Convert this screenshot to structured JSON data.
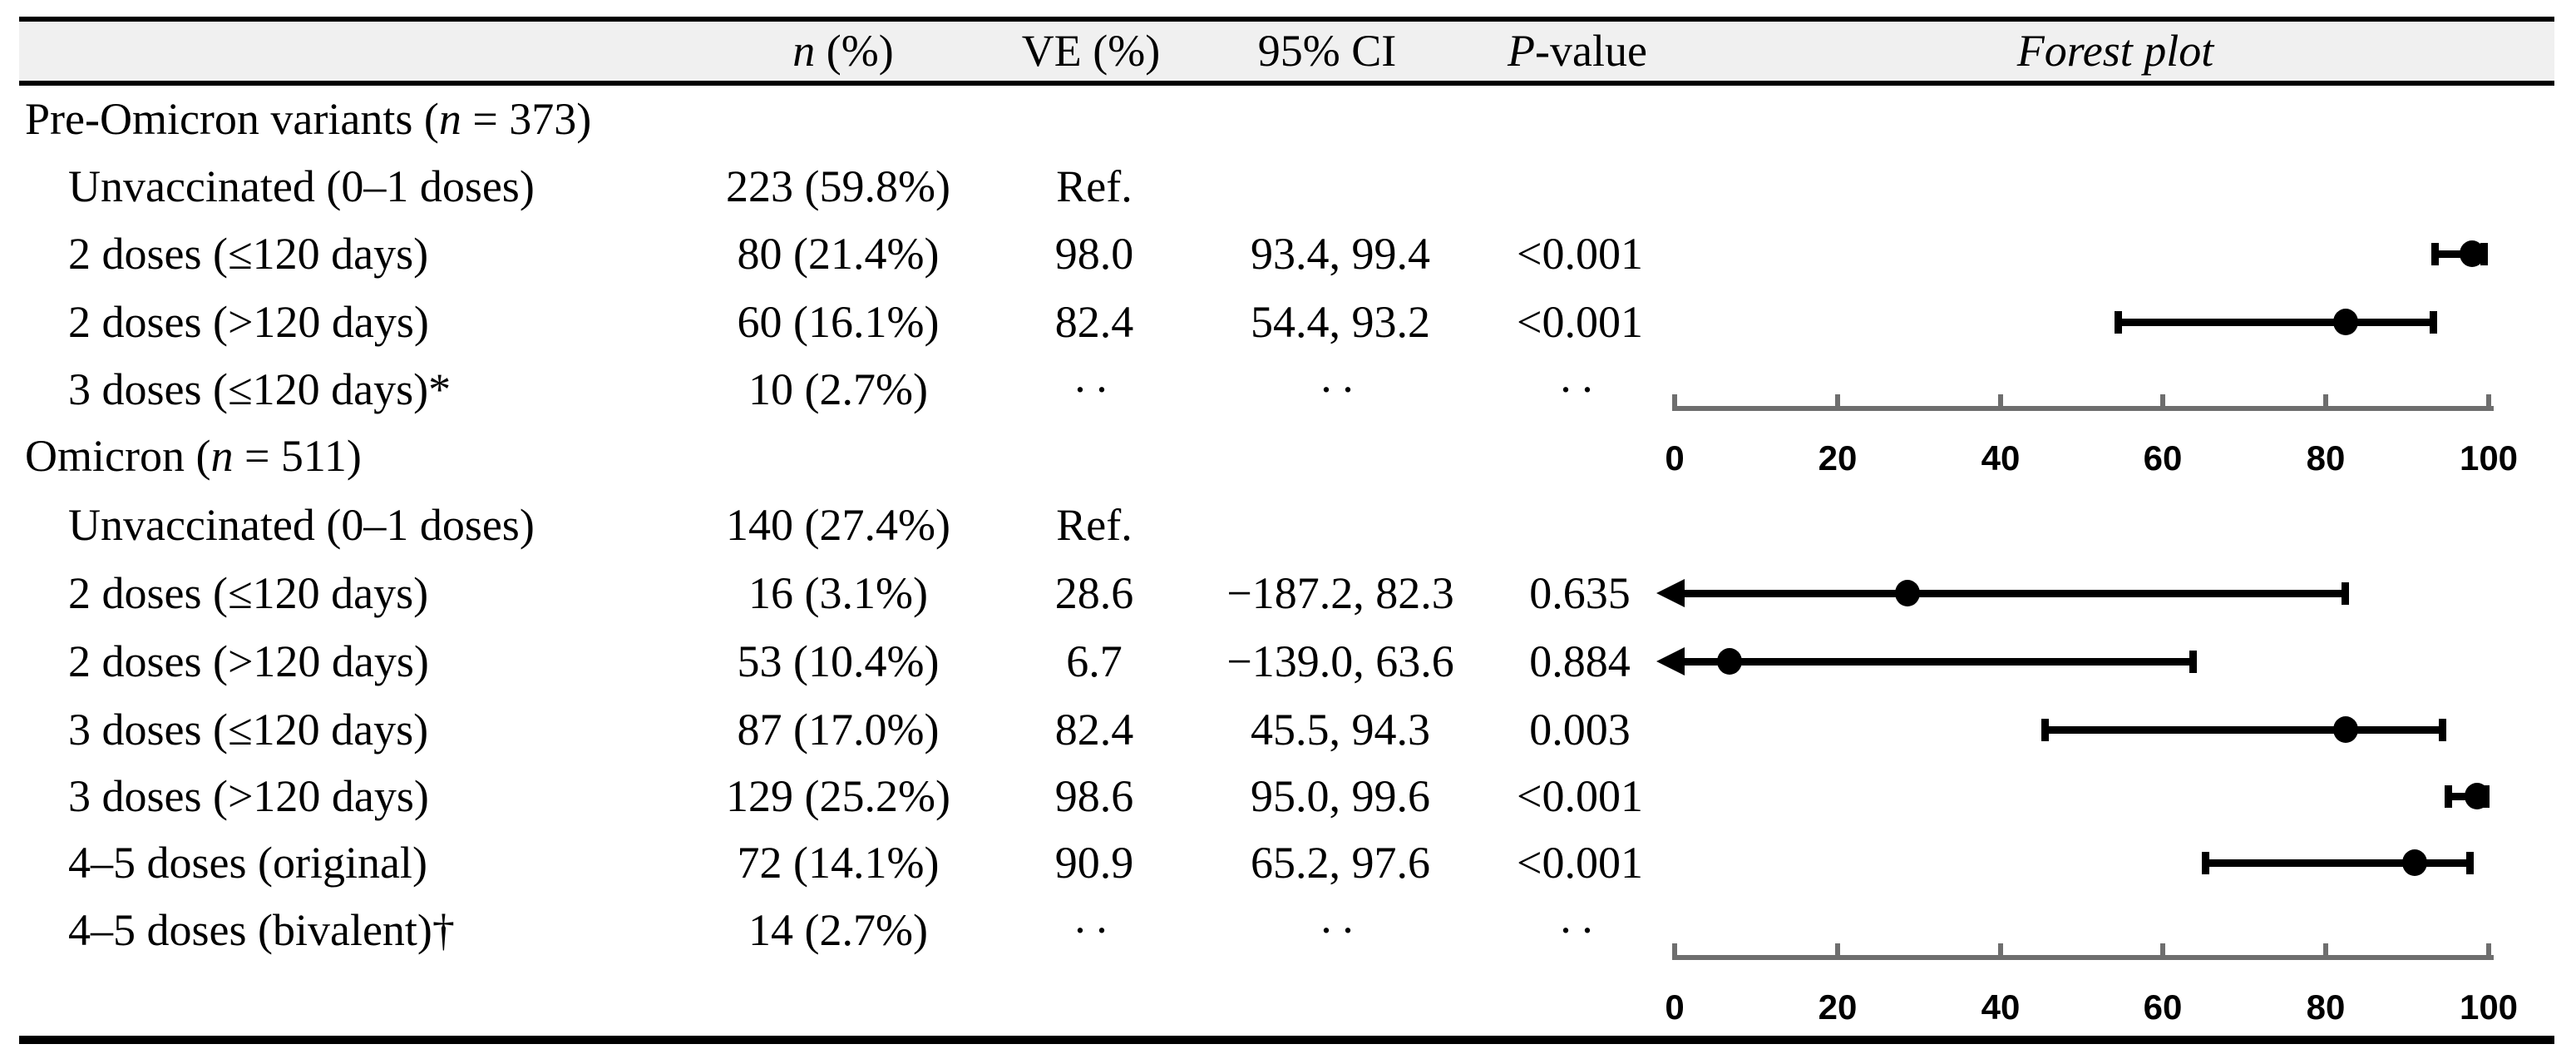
{
  "header": {
    "n_italic": "n",
    "n_rest": " (%)",
    "ve": "VE (%)",
    "ci": "95% CI",
    "p_italic": "P",
    "p_rest": "-value",
    "forest": "Forest plot"
  },
  "rows": [
    {
      "group": true,
      "label": {
        "pre": "Pre-Omicron variants (",
        "it": "n",
        "post": " = 373)"
      },
      "n": "",
      "ve": "",
      "ci": "",
      "p": ""
    },
    {
      "group": false,
      "label": {
        "pre": "Unvaccinated (0–1 doses)",
        "it": "",
        "post": ""
      },
      "n": "223 (59.8%)",
      "ve": "Ref.",
      "ci": "",
      "p": ""
    },
    {
      "group": false,
      "label": {
        "pre": "2 doses (≤120 days)",
        "it": "",
        "post": ""
      },
      "n": "80 (21.4%)",
      "ve": "98.0",
      "ci": "93.4, 99.4",
      "p": "<0.001",
      "forest": {
        "est": 98.0,
        "lo": 93.4,
        "hi": 99.4,
        "clipped_left": false
      }
    },
    {
      "group": false,
      "label": {
        "pre": "2 doses (>120 days)",
        "it": "",
        "post": ""
      },
      "n": "60 (16.1%)",
      "ve": "82.4",
      "ci": "54.4, 93.2",
      "p": "<0.001",
      "forest": {
        "est": 82.4,
        "lo": 54.4,
        "hi": 93.2,
        "clipped_left": false
      }
    },
    {
      "group": false,
      "label": {
        "pre": "3 doses (≤120 days)*",
        "it": "",
        "post": ""
      },
      "n": "10 (2.7%)",
      "ve": "··",
      "ci": "··",
      "p": "··"
    },
    {
      "group": true,
      "label": {
        "pre": "Omicron (",
        "it": "n",
        "post": " = 511)"
      },
      "n": "",
      "ve": "",
      "ci": "",
      "p": ""
    },
    {
      "group": false,
      "label": {
        "pre": "Unvaccinated (0–1 doses)",
        "it": "",
        "post": ""
      },
      "n": "140 (27.4%)",
      "ve": "Ref.",
      "ci": "",
      "p": ""
    },
    {
      "group": false,
      "label": {
        "pre": "2 doses (≤120 days)",
        "it": "",
        "post": ""
      },
      "n": "16 (3.1%)",
      "ve": "28.6",
      "ci": "−187.2, 82.3",
      "p": "0.635",
      "forest": {
        "est": 28.6,
        "lo": -187.2,
        "hi": 82.3,
        "clipped_left": true
      }
    },
    {
      "group": false,
      "label": {
        "pre": "2 doses (>120 days)",
        "it": "",
        "post": ""
      },
      "n": "53 (10.4%)",
      "ve": "6.7",
      "ci": "−139.0, 63.6",
      "p": "0.884",
      "forest": {
        "est": 6.7,
        "lo": -139.0,
        "hi": 63.6,
        "clipped_left": true
      }
    },
    {
      "group": false,
      "label": {
        "pre": "3 doses (≤120 days)",
        "it": "",
        "post": ""
      },
      "n": "87 (17.0%)",
      "ve": "82.4",
      "ci": "45.5, 94.3",
      "p": "0.003",
      "forest": {
        "est": 82.4,
        "lo": 45.5,
        "hi": 94.3,
        "clipped_left": false
      }
    },
    {
      "group": false,
      "label": {
        "pre": "3 doses (>120 days)",
        "it": "",
        "post": ""
      },
      "n": "129 (25.2%)",
      "ve": "98.6",
      "ci": "95.0, 99.6",
      "p": "<0.001",
      "forest": {
        "est": 98.6,
        "lo": 95.0,
        "hi": 99.6,
        "clipped_left": false
      }
    },
    {
      "group": false,
      "label": {
        "pre": "4–5 doses (original)",
        "it": "",
        "post": ""
      },
      "n": "72 (14.1%)",
      "ve": "90.9",
      "ci": "65.2, 97.6",
      "p": "<0.001",
      "forest": {
        "est": 90.9,
        "lo": 65.2,
        "hi": 97.6,
        "clipped_left": false
      }
    },
    {
      "group": false,
      "label": {
        "pre": "4–5 doses (bivalent)†",
        "it": "",
        "post": ""
      },
      "n": "14 (2.7%)",
      "ve": "··",
      "ci": "··",
      "p": "··"
    }
  ],
  "axis": {
    "min": 0,
    "max": 100,
    "ticks": [
      0,
      20,
      40,
      60,
      80,
      100
    ]
  },
  "colors": {
    "ink": "#000000",
    "axis_gray": "#6e6e6e",
    "header_bg": "#f0f0f0"
  },
  "chart_data": {
    "type": "scatter",
    "subtype": "forest-plot",
    "title": "Forest plot",
    "xlabel": "VE (%)",
    "xlim": [
      0,
      100
    ],
    "xticks": [
      0,
      20,
      40,
      60,
      80,
      100
    ],
    "grid": false,
    "panels": [
      {
        "name": "Pre-Omicron variants (n = 373)",
        "points": [
          {
            "label": "2 doses (≤120 days)",
            "estimate": 98.0,
            "ci_low": 93.4,
            "ci_high": 99.4
          },
          {
            "label": "2 doses (>120 days)",
            "estimate": 82.4,
            "ci_low": 54.4,
            "ci_high": 93.2
          }
        ]
      },
      {
        "name": "Omicron (n = 511)",
        "points": [
          {
            "label": "2 doses (≤120 days)",
            "estimate": 28.6,
            "ci_low": -187.2,
            "ci_high": 82.3,
            "clipped_left": true
          },
          {
            "label": "2 doses (>120 days)",
            "estimate": 6.7,
            "ci_low": -139.0,
            "ci_high": 63.6,
            "clipped_left": true
          },
          {
            "label": "3 doses (≤120 days)",
            "estimate": 82.4,
            "ci_low": 45.5,
            "ci_high": 94.3
          },
          {
            "label": "3 doses (>120 days)",
            "estimate": 98.6,
            "ci_low": 95.0,
            "ci_high": 99.6
          },
          {
            "label": "4–5 doses (original)",
            "estimate": 90.9,
            "ci_low": 65.2,
            "ci_high": 97.6
          }
        ]
      }
    ]
  }
}
